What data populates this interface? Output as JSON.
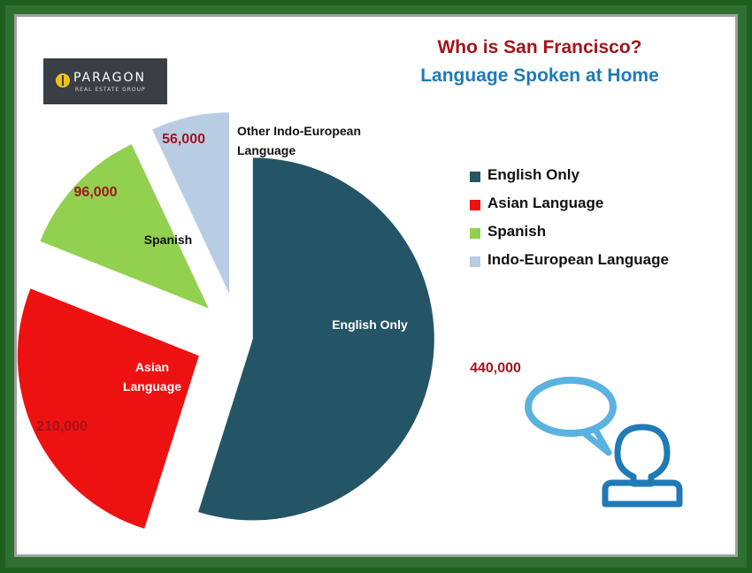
{
  "brand": {
    "logo_name": "PARAGON",
    "logo_sub": "REAL ESTATE GROUP"
  },
  "title": "Who is San Francisco?",
  "subtitle": "Language Spoken at Home",
  "colors": {
    "title": "#a2151c",
    "subtitle": "#1f7ab6",
    "value_labels": "#a2151c",
    "icon": "#1f7ab6",
    "bubble": "#5ab2e0"
  },
  "icon_name": "person-speech-bubble-icon",
  "chart_data": {
    "type": "pie",
    "exploded": true,
    "slices": [
      {
        "label": "English Only",
        "slice_label": "English Only",
        "value": 440000,
        "value_label": "440,000",
        "color": "#245566",
        "text_color": "#ffffff"
      },
      {
        "label": "Asian Language",
        "slice_label": "Asian Language",
        "value": 210000,
        "value_label": "210,000",
        "color": "#ee1111",
        "text_color": "#ffffff"
      },
      {
        "label": "Spanish",
        "slice_label": "Spanish",
        "value": 96000,
        "value_label": "96,000",
        "color": "#92d050",
        "text_color": "#111111"
      },
      {
        "label": "Indo-European Language",
        "slice_label": "Other Indo-European Language",
        "value": 56000,
        "value_label": "56,000",
        "color": "#b8cce4",
        "text_color": "#111111"
      }
    ],
    "legend_position": "right"
  }
}
